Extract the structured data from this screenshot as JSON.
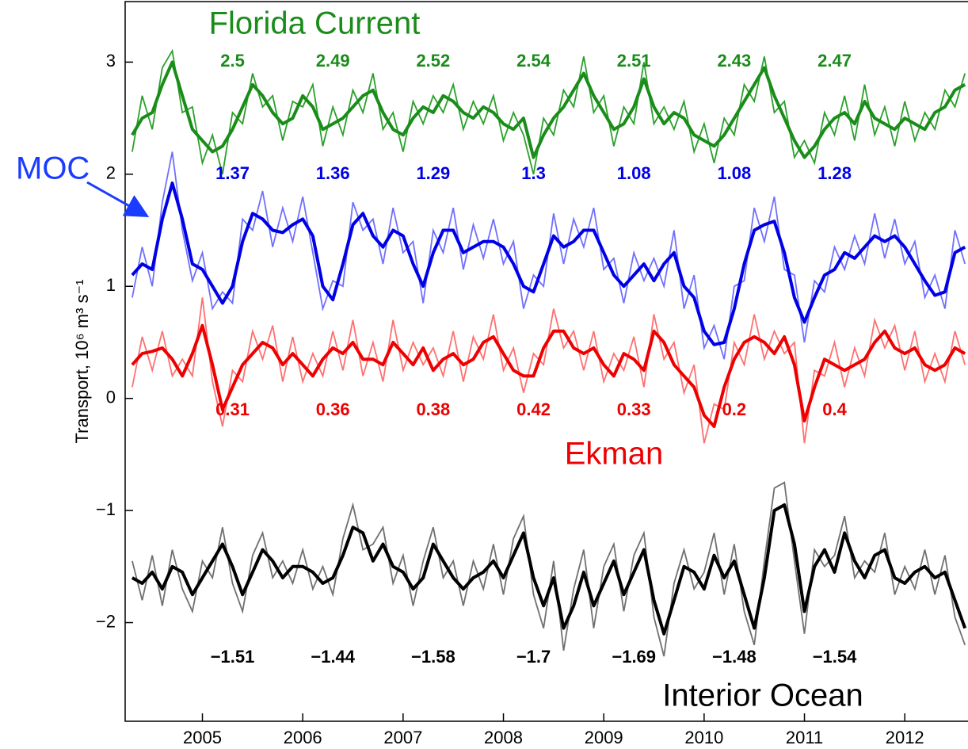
{
  "chart_data": {
    "type": "line",
    "y_label": "Transport, 10⁶ m³ s⁻¹",
    "xlim": [
      2004.23,
      2012.63
    ],
    "ylim": [
      -2.88,
      3.54
    ],
    "xticks": [
      2005,
      2006,
      2007,
      2008,
      2009,
      2010,
      2011,
      2012
    ],
    "yticks": [
      {
        "value": -2,
        "label": "−2"
      },
      {
        "value": -1,
        "label": "−1"
      },
      0,
      1,
      2,
      3
    ],
    "x": [
      2004.3,
      2004.4,
      2004.5,
      2004.6,
      2004.7,
      2004.8,
      2004.9,
      2005.0,
      2005.1,
      2005.2,
      2005.3,
      2005.4,
      2005.5,
      2005.6,
      2005.7,
      2005.8,
      2005.9,
      2006.0,
      2006.1,
      2006.2,
      2006.3,
      2006.4,
      2006.5,
      2006.6,
      2006.7,
      2006.8,
      2006.9,
      2007.0,
      2007.1,
      2007.2,
      2007.3,
      2007.4,
      2007.5,
      2007.6,
      2007.7,
      2007.8,
      2007.9,
      2008.0,
      2008.1,
      2008.2,
      2008.3,
      2008.4,
      2008.5,
      2008.6,
      2008.7,
      2008.8,
      2008.9,
      2009.0,
      2009.1,
      2009.2,
      2009.3,
      2009.4,
      2009.5,
      2009.6,
      2009.7,
      2009.8,
      2009.9,
      2010.0,
      2010.1,
      2010.2,
      2010.3,
      2010.4,
      2010.5,
      2010.6,
      2010.7,
      2010.8,
      2010.9,
      2011.0,
      2011.1,
      2011.2,
      2011.3,
      2011.4,
      2011.5,
      2011.6,
      2011.7,
      2011.8,
      2011.9,
      2012.0,
      2012.1,
      2012.2,
      2012.3,
      2012.4,
      2012.5,
      2012.6
    ],
    "series": [
      {
        "name": "Florida Current",
        "color": "#1a8c1a",
        "values": [
          2.35,
          2.5,
          2.55,
          2.8,
          3.0,
          2.7,
          2.4,
          2.3,
          2.2,
          2.25,
          2.4,
          2.6,
          2.8,
          2.7,
          2.55,
          2.45,
          2.5,
          2.7,
          2.6,
          2.4,
          2.45,
          2.5,
          2.6,
          2.7,
          2.75,
          2.55,
          2.4,
          2.35,
          2.5,
          2.6,
          2.55,
          2.7,
          2.65,
          2.55,
          2.5,
          2.6,
          2.55,
          2.45,
          2.4,
          2.5,
          2.15,
          2.35,
          2.5,
          2.6,
          2.75,
          2.9,
          2.7,
          2.55,
          2.4,
          2.45,
          2.6,
          2.85,
          2.6,
          2.45,
          2.55,
          2.5,
          2.35,
          2.3,
          2.25,
          2.35,
          2.5,
          2.65,
          2.8,
          2.95,
          2.7,
          2.5,
          2.3,
          2.15,
          2.25,
          2.4,
          2.5,
          2.55,
          2.45,
          2.65,
          2.5,
          2.45,
          2.4,
          2.5,
          2.45,
          2.4,
          2.55,
          2.6,
          2.75,
          2.8
        ],
        "raw": {
          "color": "#2aa02a",
          "values": [
            2.2,
            2.7,
            2.4,
            2.95,
            3.1,
            2.55,
            2.6,
            2.1,
            2.35,
            2.0,
            2.55,
            2.45,
            2.9,
            2.6,
            2.7,
            2.3,
            2.65,
            2.6,
            2.8,
            2.25,
            2.6,
            2.35,
            2.75,
            2.55,
            2.9,
            2.4,
            2.55,
            2.2,
            2.65,
            2.45,
            2.7,
            2.55,
            2.8,
            2.4,
            2.65,
            2.45,
            2.7,
            2.3,
            2.55,
            2.35,
            2.0,
            2.5,
            2.35,
            2.75,
            2.6,
            3.05,
            2.55,
            2.7,
            2.25,
            2.6,
            2.45,
            3.0,
            2.45,
            2.6,
            2.4,
            2.65,
            2.2,
            2.45,
            2.1,
            2.5,
            2.35,
            2.8,
            2.65,
            3.05,
            2.55,
            2.65,
            2.15,
            2.3,
            2.1,
            2.55,
            2.35,
            2.7,
            2.3,
            2.8,
            2.35,
            2.6,
            2.25,
            2.65,
            2.3,
            2.55,
            2.4,
            2.75,
            2.6,
            2.9
          ]
        },
        "annual_means": {
          "values": [
            2.5,
            2.49,
            2.52,
            2.54,
            2.51,
            2.43,
            2.47
          ]
        }
      },
      {
        "name": "MOC",
        "color": "#0000e6",
        "values": [
          1.1,
          1.2,
          1.15,
          1.6,
          1.92,
          1.6,
          1.2,
          1.15,
          1.0,
          0.85,
          1.0,
          1.4,
          1.65,
          1.6,
          1.5,
          1.48,
          1.55,
          1.6,
          1.45,
          1.0,
          0.88,
          1.2,
          1.55,
          1.65,
          1.45,
          1.35,
          1.5,
          1.45,
          1.2,
          1.0,
          1.3,
          1.5,
          1.5,
          1.3,
          1.35,
          1.4,
          1.4,
          1.35,
          1.2,
          1.0,
          0.95,
          1.2,
          1.45,
          1.35,
          1.4,
          1.5,
          1.5,
          1.3,
          1.1,
          1.0,
          1.1,
          1.2,
          1.05,
          1.2,
          1.3,
          1.0,
          0.9,
          0.6,
          0.48,
          0.5,
          0.8,
          1.2,
          1.5,
          1.55,
          1.58,
          1.3,
          0.9,
          0.68,
          0.9,
          1.1,
          1.15,
          1.3,
          1.25,
          1.35,
          1.45,
          1.4,
          1.45,
          1.35,
          1.2,
          1.05,
          0.92,
          0.95,
          1.3,
          1.35
        ],
        "raw": {
          "color": "#7070ff",
          "values": [
            0.9,
            1.35,
            1.0,
            1.75,
            2.2,
            1.5,
            1.05,
            1.3,
            0.8,
            0.95,
            0.85,
            1.6,
            1.5,
            1.85,
            1.35,
            1.7,
            1.4,
            1.8,
            1.3,
            0.8,
            1.05,
            1.0,
            1.75,
            1.5,
            1.6,
            1.2,
            1.7,
            1.3,
            1.4,
            0.85,
            1.5,
            1.3,
            1.7,
            1.15,
            1.55,
            1.25,
            1.6,
            1.2,
            1.4,
            0.8,
            1.1,
            1.0,
            1.65,
            1.2,
            1.6,
            1.35,
            1.7,
            1.15,
            1.25,
            0.85,
            1.3,
            1.05,
            1.25,
            1.0,
            1.5,
            0.8,
            1.1,
            0.45,
            0.65,
            0.35,
            1.0,
            1.05,
            1.7,
            1.4,
            1.8,
            1.15,
            1.1,
            0.5,
            1.05,
            0.95,
            1.35,
            1.15,
            1.45,
            1.2,
            1.65,
            1.25,
            1.6,
            1.2,
            1.4,
            0.9,
            1.1,
            0.8,
            1.5,
            1.2
          ]
        },
        "annual_means": {
          "values": [
            1.37,
            1.36,
            1.29,
            1.3,
            1.08,
            1.08,
            1.28
          ]
        }
      },
      {
        "name": "Ekman",
        "color": "#ee0000",
        "values": [
          0.3,
          0.4,
          0.42,
          0.45,
          0.35,
          0.2,
          0.4,
          0.65,
          0.3,
          -0.1,
          0.1,
          0.3,
          0.4,
          0.5,
          0.45,
          0.3,
          0.4,
          0.3,
          0.2,
          0.35,
          0.45,
          0.4,
          0.5,
          0.35,
          0.35,
          0.3,
          0.5,
          0.4,
          0.3,
          0.45,
          0.25,
          0.35,
          0.4,
          0.3,
          0.35,
          0.5,
          0.55,
          0.4,
          0.25,
          0.2,
          0.2,
          0.45,
          0.6,
          0.6,
          0.45,
          0.4,
          0.45,
          0.3,
          0.2,
          0.4,
          0.35,
          0.25,
          0.6,
          0.5,
          0.3,
          0.2,
          0.1,
          -0.15,
          -0.25,
          0.1,
          0.35,
          0.5,
          0.55,
          0.5,
          0.4,
          0.55,
          0.3,
          -0.2,
          0.1,
          0.35,
          0.3,
          0.25,
          0.3,
          0.35,
          0.5,
          0.6,
          0.45,
          0.4,
          0.45,
          0.3,
          0.25,
          0.3,
          0.45,
          0.4
        ],
        "raw": {
          "color": "#ff7070",
          "values": [
            0.1,
            0.55,
            0.25,
            0.6,
            0.2,
            0.35,
            0.2,
            0.9,
            0.15,
            -0.25,
            0.25,
            0.15,
            0.6,
            0.35,
            0.65,
            0.15,
            0.55,
            0.15,
            0.4,
            0.2,
            0.6,
            0.25,
            0.7,
            0.2,
            0.5,
            0.15,
            0.7,
            0.25,
            0.5,
            0.3,
            0.45,
            0.2,
            0.6,
            0.15,
            0.55,
            0.35,
            0.75,
            0.25,
            0.45,
            0.05,
            0.4,
            0.3,
            0.8,
            0.45,
            0.6,
            0.25,
            0.6,
            0.15,
            0.4,
            0.25,
            0.55,
            0.1,
            0.75,
            0.35,
            0.5,
            0.05,
            0.3,
            -0.4,
            -0.05,
            -0.1,
            0.5,
            0.3,
            0.75,
            0.35,
            0.6,
            0.4,
            0.5,
            -0.4,
            0.25,
            0.2,
            0.5,
            0.1,
            0.45,
            0.2,
            0.7,
            0.45,
            0.65,
            0.25,
            0.6,
            0.15,
            0.4,
            0.15,
            0.6,
            0.3
          ]
        },
        "annual_means": {
          "values": [
            0.31,
            0.36,
            0.38,
            0.42,
            0.33,
            0.2,
            0.4
          ]
        }
      },
      {
        "name": "Interior Ocean",
        "color": "#000000",
        "values": [
          -1.6,
          -1.65,
          -1.55,
          -1.7,
          -1.5,
          -1.55,
          -1.75,
          -1.6,
          -1.45,
          -1.3,
          -1.5,
          -1.75,
          -1.55,
          -1.35,
          -1.45,
          -1.6,
          -1.5,
          -1.5,
          -1.55,
          -1.65,
          -1.6,
          -1.4,
          -1.15,
          -1.2,
          -1.45,
          -1.3,
          -1.5,
          -1.55,
          -1.7,
          -1.6,
          -1.3,
          -1.45,
          -1.6,
          -1.7,
          -1.6,
          -1.55,
          -1.45,
          -1.6,
          -1.4,
          -1.2,
          -1.6,
          -1.85,
          -1.6,
          -2.05,
          -1.85,
          -1.55,
          -1.85,
          -1.65,
          -1.45,
          -1.75,
          -1.55,
          -1.35,
          -1.8,
          -2.1,
          -1.8,
          -1.5,
          -1.55,
          -1.7,
          -1.4,
          -1.6,
          -1.45,
          -1.75,
          -2.05,
          -1.6,
          -1.0,
          -0.95,
          -1.3,
          -1.9,
          -1.5,
          -1.35,
          -1.55,
          -1.2,
          -1.45,
          -1.6,
          -1.4,
          -1.35,
          -1.6,
          -1.65,
          -1.55,
          -1.5,
          -1.6,
          -1.55,
          -1.8,
          -2.05
        ],
        "raw": {
          "color": "#707070",
          "values": [
            -1.45,
            -1.8,
            -1.4,
            -1.85,
            -1.35,
            -1.7,
            -1.9,
            -1.45,
            -1.6,
            -1.15,
            -1.65,
            -1.9,
            -1.4,
            -1.2,
            -1.6,
            -1.45,
            -1.65,
            -1.35,
            -1.7,
            -1.5,
            -1.75,
            -1.25,
            -0.95,
            -1.35,
            -1.3,
            -1.15,
            -1.65,
            -1.4,
            -1.85,
            -1.45,
            -1.15,
            -1.6,
            -1.45,
            -1.85,
            -1.45,
            -1.7,
            -1.3,
            -1.75,
            -1.25,
            -1.05,
            -1.75,
            -2.05,
            -1.45,
            -2.25,
            -1.7,
            -1.35,
            -2.05,
            -1.5,
            -1.3,
            -1.9,
            -1.4,
            -1.2,
            -1.95,
            -2.3,
            -1.65,
            -1.35,
            -1.7,
            -1.55,
            -1.2,
            -1.75,
            -1.3,
            -1.9,
            -2.2,
            -1.45,
            -0.8,
            -0.75,
            -1.45,
            -2.1,
            -1.35,
            -1.5,
            -1.4,
            -1.05,
            -1.6,
            -1.45,
            -1.55,
            -1.2,
            -1.75,
            -1.5,
            -1.7,
            -1.35,
            -1.75,
            -1.4,
            -1.95,
            -2.2
          ]
        },
        "annual_means": {
          "values": [
            -1.51,
            -1.44,
            -1.58,
            -1.7,
            -1.69,
            -1.48,
            -1.54
          ],
          "value_labels": [
            "−1.51",
            "−1.44",
            "−1.58",
            "−1.7",
            "−1.69",
            "−1.48",
            "−1.54"
          ]
        }
      }
    ]
  }
}
